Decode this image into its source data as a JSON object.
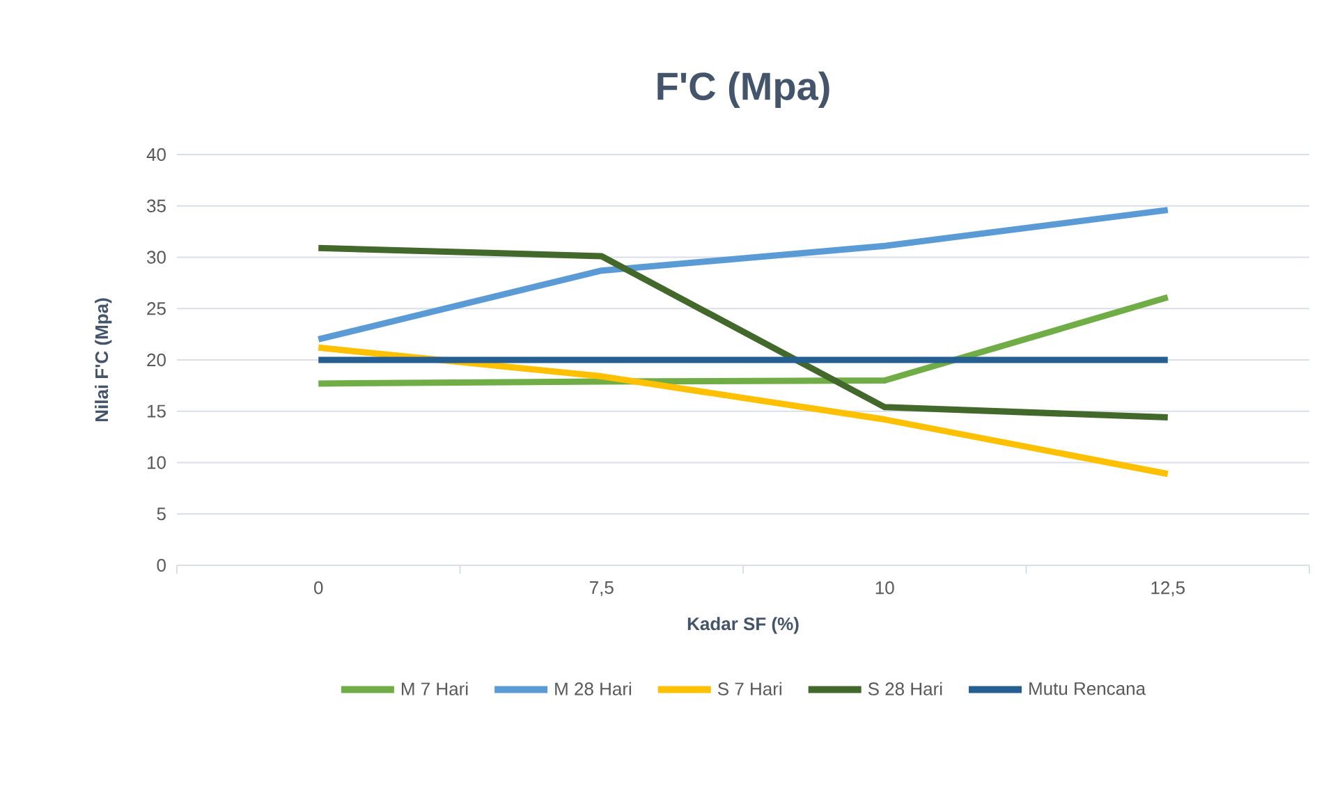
{
  "chart_data": {
    "type": "line",
    "title": "F'C (Mpa)",
    "xlabel": "Kadar SF (%)",
    "ylabel": "Nilai F'C (Mpa)",
    "categories": [
      "0",
      "7,5",
      "10",
      "12,5"
    ],
    "series": [
      {
        "name": "M 7 Hari",
        "color": "#70ad47",
        "values": [
          17.7,
          17.9,
          18,
          26.1
        ]
      },
      {
        "name": "M 28 Hari",
        "color": "#5b9bd5",
        "values": [
          22,
          28.7,
          31.1,
          34.6
        ]
      },
      {
        "name": "S 7 Hari",
        "color": "#ffc000",
        "values": [
          21.2,
          18.4,
          14.2,
          8.9
        ]
      },
      {
        "name": "S 28 Hari",
        "color": "#43682b",
        "values": [
          30.9,
          30.1,
          15.4,
          14.4
        ]
      },
      {
        "name": "Mutu Rencana",
        "color": "#255e91",
        "values": [
          20,
          20,
          20,
          20
        ]
      }
    ],
    "ylim": [
      0,
      40
    ],
    "yticks": [
      0,
      5,
      10,
      15,
      20,
      25,
      30,
      35,
      40
    ],
    "grid": "y",
    "legend": "bottom",
    "marker": "none",
    "line_style": "solid"
  }
}
